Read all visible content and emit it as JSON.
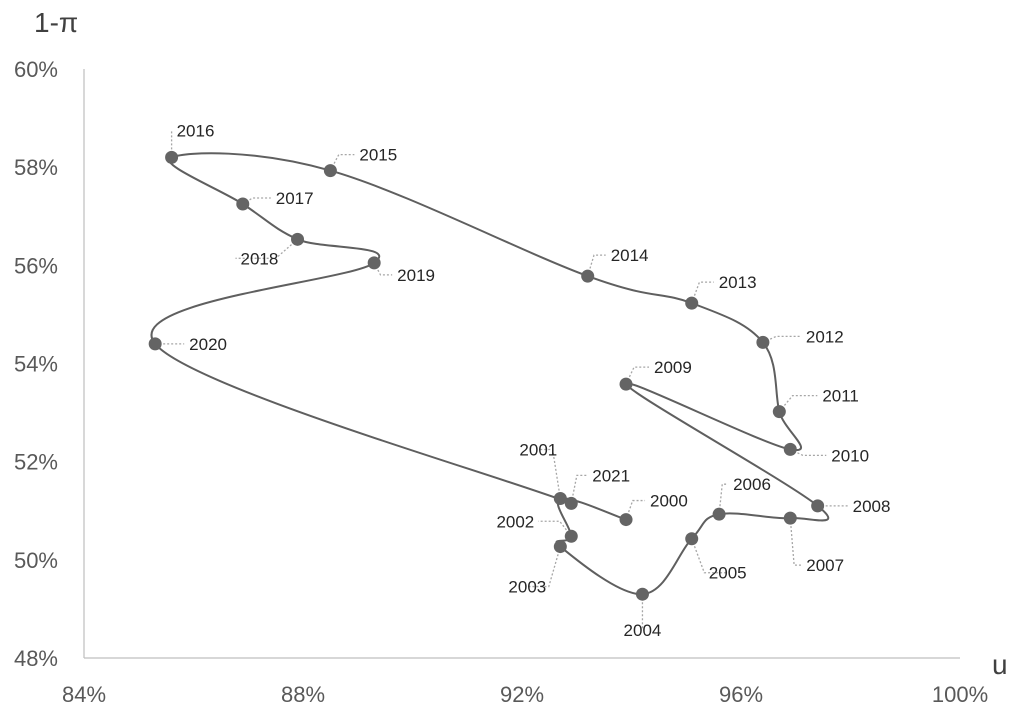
{
  "chart_data": {
    "type": "scatter",
    "title": "",
    "xlabel": "u",
    "ylabel": "1-π",
    "xlim": [
      0.84,
      1.0
    ],
    "ylim": [
      0.48,
      0.6
    ],
    "xticks": [
      "84%",
      "88%",
      "92%",
      "96%",
      "100%"
    ],
    "yticks": [
      "48%",
      "50%",
      "52%",
      "54%",
      "56%",
      "58%",
      "60%"
    ],
    "xtick_values": [
      0.84,
      0.88,
      0.92,
      0.96,
      1.0
    ],
    "ytick_values": [
      0.48,
      0.5,
      0.52,
      0.54,
      0.56,
      0.58,
      0.6
    ],
    "grid": false,
    "line": "smooth, connecting points in year order",
    "points": [
      {
        "label": "2000",
        "x": 0.939,
        "y": 0.5082
      },
      {
        "label": "2001",
        "x": 0.927,
        "y": 0.5125
      },
      {
        "label": "2002",
        "x": 0.929,
        "y": 0.5048
      },
      {
        "label": "2003",
        "x": 0.927,
        "y": 0.5027
      },
      {
        "label": "2004",
        "x": 0.942,
        "y": 0.493
      },
      {
        "label": "2005",
        "x": 0.951,
        "y": 0.5043
      },
      {
        "label": "2006",
        "x": 0.956,
        "y": 0.5093
      },
      {
        "label": "2007",
        "x": 0.969,
        "y": 0.5085
      },
      {
        "label": "2008",
        "x": 0.974,
        "y": 0.511
      },
      {
        "label": "2009",
        "x": 0.939,
        "y": 0.5358
      },
      {
        "label": "2010",
        "x": 0.969,
        "y": 0.5225
      },
      {
        "label": "2011",
        "x": 0.967,
        "y": 0.5302
      },
      {
        "label": "2012",
        "x": 0.964,
        "y": 0.5443
      },
      {
        "label": "2013",
        "x": 0.951,
        "y": 0.5523
      },
      {
        "label": "2014",
        "x": 0.932,
        "y": 0.5578
      },
      {
        "label": "2015",
        "x": 0.885,
        "y": 0.5793
      },
      {
        "label": "2016",
        "x": 0.856,
        "y": 0.582
      },
      {
        "label": "2017",
        "x": 0.869,
        "y": 0.5725
      },
      {
        "label": "2018",
        "x": 0.879,
        "y": 0.5653
      },
      {
        "label": "2019",
        "x": 0.893,
        "y": 0.5605
      },
      {
        "label": "2020",
        "x": 0.853,
        "y": 0.544
      },
      {
        "label": "2021",
        "x": 0.929,
        "y": 0.5115
      }
    ]
  }
}
